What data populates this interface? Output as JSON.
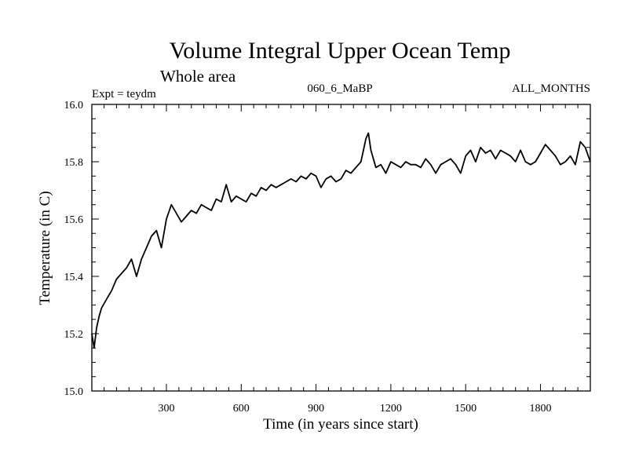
{
  "chart_data": {
    "type": "line",
    "title": "Volume Integral Upper Ocean Temp",
    "subtitle": "Whole area",
    "header_left": "Expt = teydm",
    "header_center": "060_6_MaBP",
    "header_right": "ALL_MONTHS",
    "xlabel": "Time (in years since start)",
    "ylabel": "Temperature (in C)",
    "xlim": [
      1,
      2000
    ],
    "ylim": [
      15.0,
      16.0
    ],
    "x_ticks": [
      300,
      600,
      900,
      1200,
      1500,
      1800
    ],
    "y_ticks": [
      15.0,
      15.2,
      15.4,
      15.6,
      15.8,
      16.0
    ],
    "x_tick_labels": [
      "300",
      "600",
      "900",
      "1200",
      "1500",
      "1800"
    ],
    "y_tick_labels": [
      "15.0",
      "15.2",
      "15.4",
      "15.6",
      "15.8",
      "16.0"
    ],
    "grid": false,
    "line_color": "#000000",
    "series": [
      {
        "name": "Volume Integral Upper Ocean Temp",
        "x": [
          1,
          10,
          20,
          30,
          40,
          60,
          80,
          100,
          120,
          140,
          160,
          180,
          200,
          220,
          240,
          260,
          280,
          300,
          320,
          340,
          360,
          380,
          400,
          420,
          440,
          460,
          480,
          500,
          520,
          540,
          560,
          580,
          600,
          620,
          640,
          660,
          680,
          700,
          720,
          740,
          760,
          780,
          800,
          820,
          840,
          860,
          880,
          900,
          920,
          940,
          960,
          980,
          1000,
          1020,
          1040,
          1060,
          1080,
          1100,
          1110,
          1120,
          1140,
          1160,
          1180,
          1200,
          1220,
          1240,
          1260,
          1280,
          1300,
          1320,
          1340,
          1360,
          1380,
          1400,
          1420,
          1440,
          1460,
          1480,
          1500,
          1520,
          1540,
          1560,
          1580,
          1600,
          1620,
          1640,
          1660,
          1680,
          1700,
          1720,
          1740,
          1760,
          1780,
          1800,
          1820,
          1840,
          1860,
          1880,
          1900,
          1920,
          1940,
          1960,
          1980,
          2000
        ],
        "values": [
          15.2,
          15.15,
          15.22,
          15.26,
          15.29,
          15.32,
          15.35,
          15.39,
          15.41,
          15.43,
          15.46,
          15.4,
          15.46,
          15.5,
          15.54,
          15.56,
          15.5,
          15.6,
          15.65,
          15.62,
          15.59,
          15.61,
          15.63,
          15.62,
          15.65,
          15.64,
          15.63,
          15.67,
          15.66,
          15.72,
          15.66,
          15.68,
          15.67,
          15.66,
          15.69,
          15.68,
          15.71,
          15.7,
          15.72,
          15.71,
          15.72,
          15.73,
          15.74,
          15.73,
          15.75,
          15.74,
          15.76,
          15.75,
          15.71,
          15.74,
          15.75,
          15.73,
          15.74,
          15.77,
          15.76,
          15.78,
          15.8,
          15.88,
          15.9,
          15.84,
          15.78,
          15.79,
          15.76,
          15.8,
          15.79,
          15.78,
          15.8,
          15.79,
          15.79,
          15.78,
          15.81,
          15.79,
          15.76,
          15.79,
          15.8,
          15.81,
          15.79,
          15.76,
          15.82,
          15.84,
          15.8,
          15.85,
          15.83,
          15.84,
          15.81,
          15.84,
          15.83,
          15.82,
          15.8,
          15.84,
          15.8,
          15.79,
          15.8,
          15.83,
          15.86,
          15.84,
          15.82,
          15.79,
          15.8,
          15.82,
          15.79,
          15.87,
          15.85,
          15.8
        ]
      }
    ]
  }
}
